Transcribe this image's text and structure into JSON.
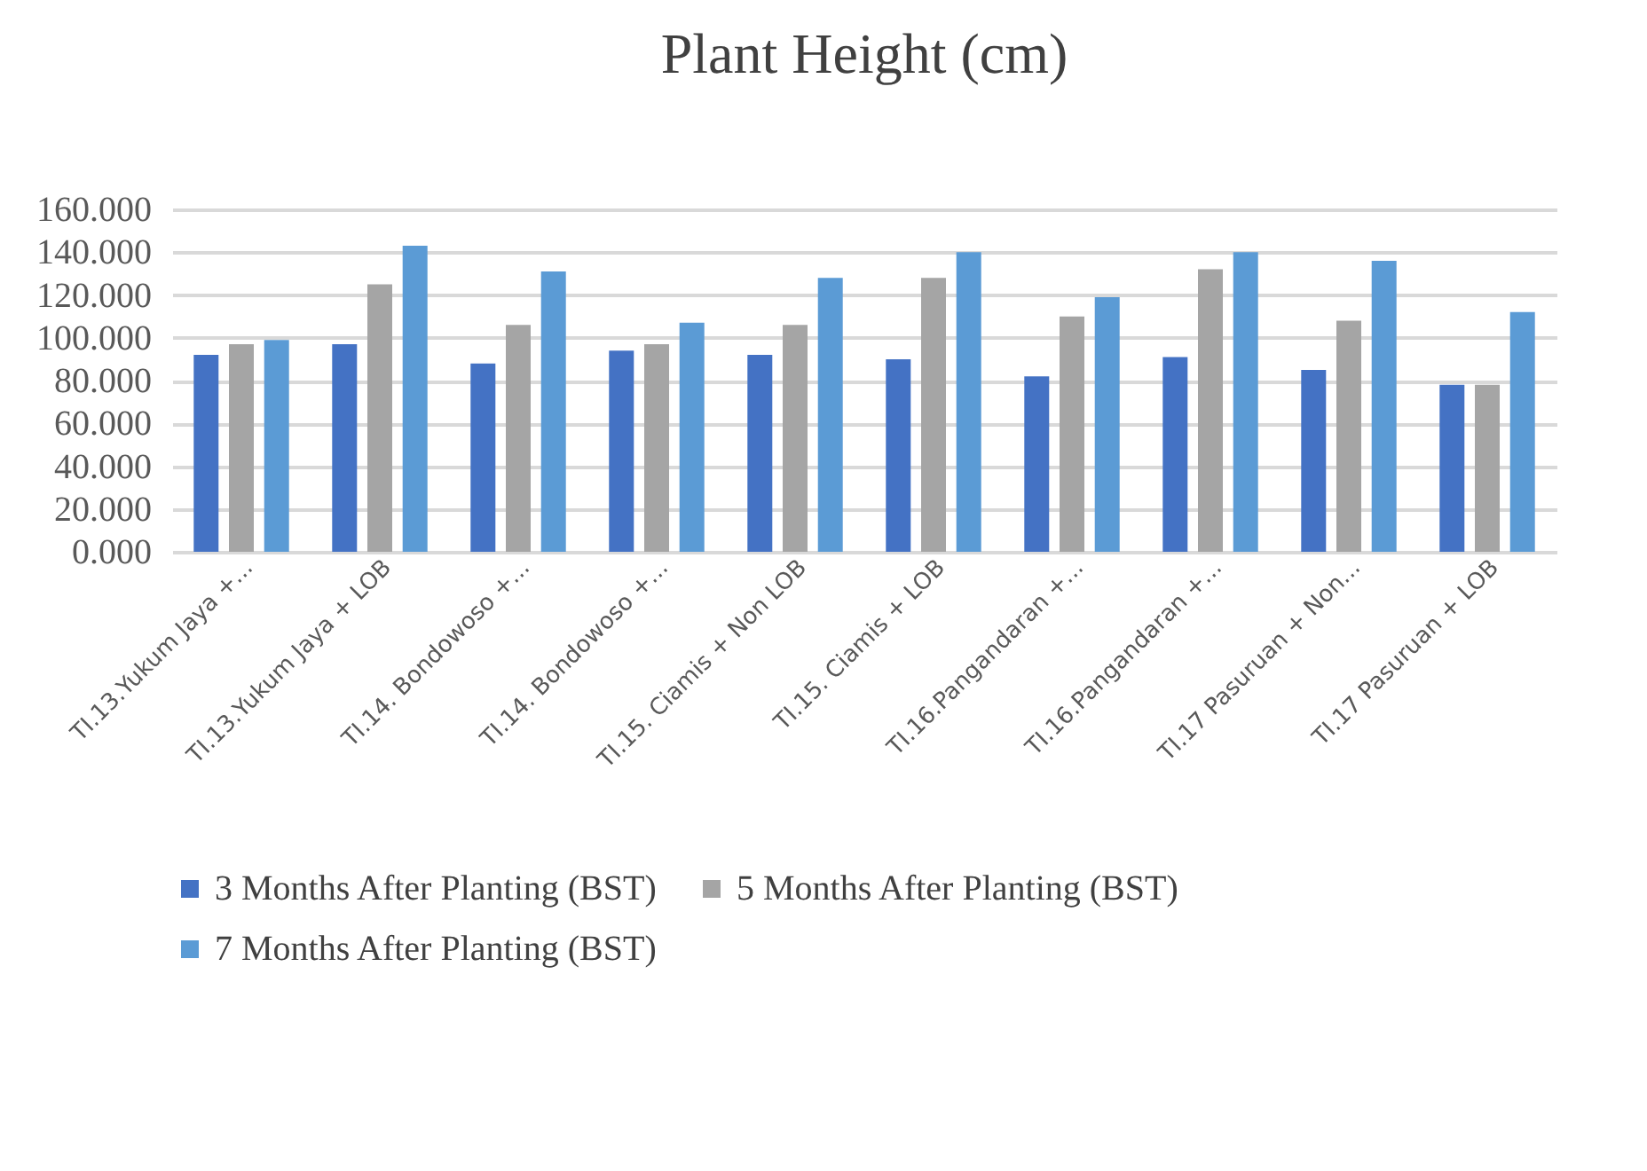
{
  "chart_data": {
    "type": "bar",
    "title": "Plant Height (cm)",
    "categories": [
      "TI.13.Yukum Jaya +...",
      "TI.13.Yukum Jaya + LOB",
      "TI.14. Bondowoso +...",
      "TI.14. Bondowoso +...",
      "TI.15. Ciamis + Non LOB",
      "TI.15. Ciamis + LOB",
      "TI.16.Pangandaran +...",
      "TI.16.Pangandaran +...",
      "TI.17 Pasuruan + Non...",
      "TI.17 Pasuruan + LOB"
    ],
    "series": [
      {
        "name": "3 Months After Planting (BST)",
        "color": "#4472c4",
        "values": [
          92,
          97,
          88,
          94,
          92,
          90,
          82,
          91,
          85,
          78
        ]
      },
      {
        "name": "5 Months After Planting (BST)",
        "color": "#a5a5a5",
        "values": [
          97,
          125,
          106,
          97,
          106,
          128,
          110,
          132,
          108,
          78
        ]
      },
      {
        "name": "7 Months After Planting (BST)",
        "color": "#5b9bd5",
        "values": [
          99,
          143,
          131,
          107,
          128,
          140,
          119,
          140,
          136,
          112
        ]
      }
    ],
    "ylim": [
      0,
      160
    ],
    "yticks": [
      {
        "value": 0,
        "label": "0.000"
      },
      {
        "value": 20,
        "label": "20.000"
      },
      {
        "value": 40,
        "label": "40.000"
      },
      {
        "value": 60,
        "label": "60.000"
      },
      {
        "value": 80,
        "label": "80.000"
      },
      {
        "value": 100,
        "label": "100.000"
      },
      {
        "value": 120,
        "label": "120.000"
      },
      {
        "value": 140,
        "label": "140.000"
      },
      {
        "value": 160,
        "label": "160.000"
      }
    ],
    "grid": "y",
    "legend": "bottom"
  }
}
